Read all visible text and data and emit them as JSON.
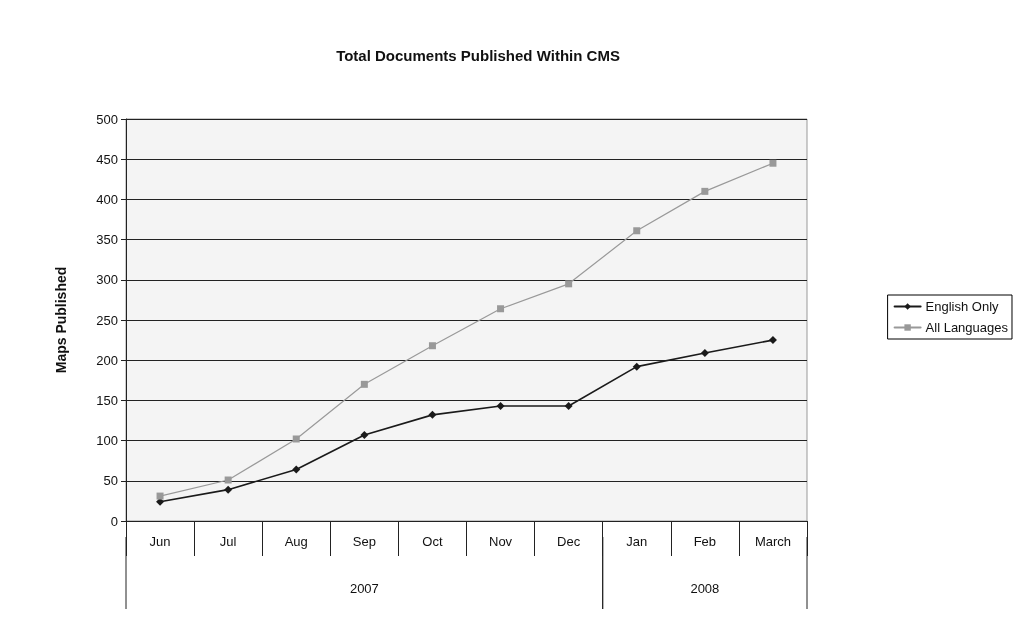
{
  "chart_data": {
    "type": "line",
    "title": "Total Documents Published Within CMS",
    "ylabel": "Maps Published",
    "categories": [
      "Jun",
      "Jul",
      "Aug",
      "Sep",
      "Oct",
      "Nov",
      "Dec",
      "Jan",
      "Feb",
      "March"
    ],
    "series": [
      {
        "name": "English Only",
        "color": "#1a1a1a",
        "marker": "diamond",
        "values": [
          24,
          39,
          64,
          107,
          132,
          143,
          143,
          192,
          209,
          225
        ]
      },
      {
        "name": "All Languages",
        "color": "#999999",
        "marker": "square",
        "values": [
          31,
          51,
          102,
          170,
          218,
          264,
          295,
          361,
          410,
          445
        ]
      }
    ],
    "annotations": [
      "2007",
      "2008"
    ],
    "ylim": [
      0,
      500
    ],
    "yticks": [
      0,
      50,
      100,
      150,
      200,
      250,
      300,
      350,
      400,
      450,
      500
    ],
    "grid": "y",
    "legend": "right",
    "line_style": "solid"
  }
}
